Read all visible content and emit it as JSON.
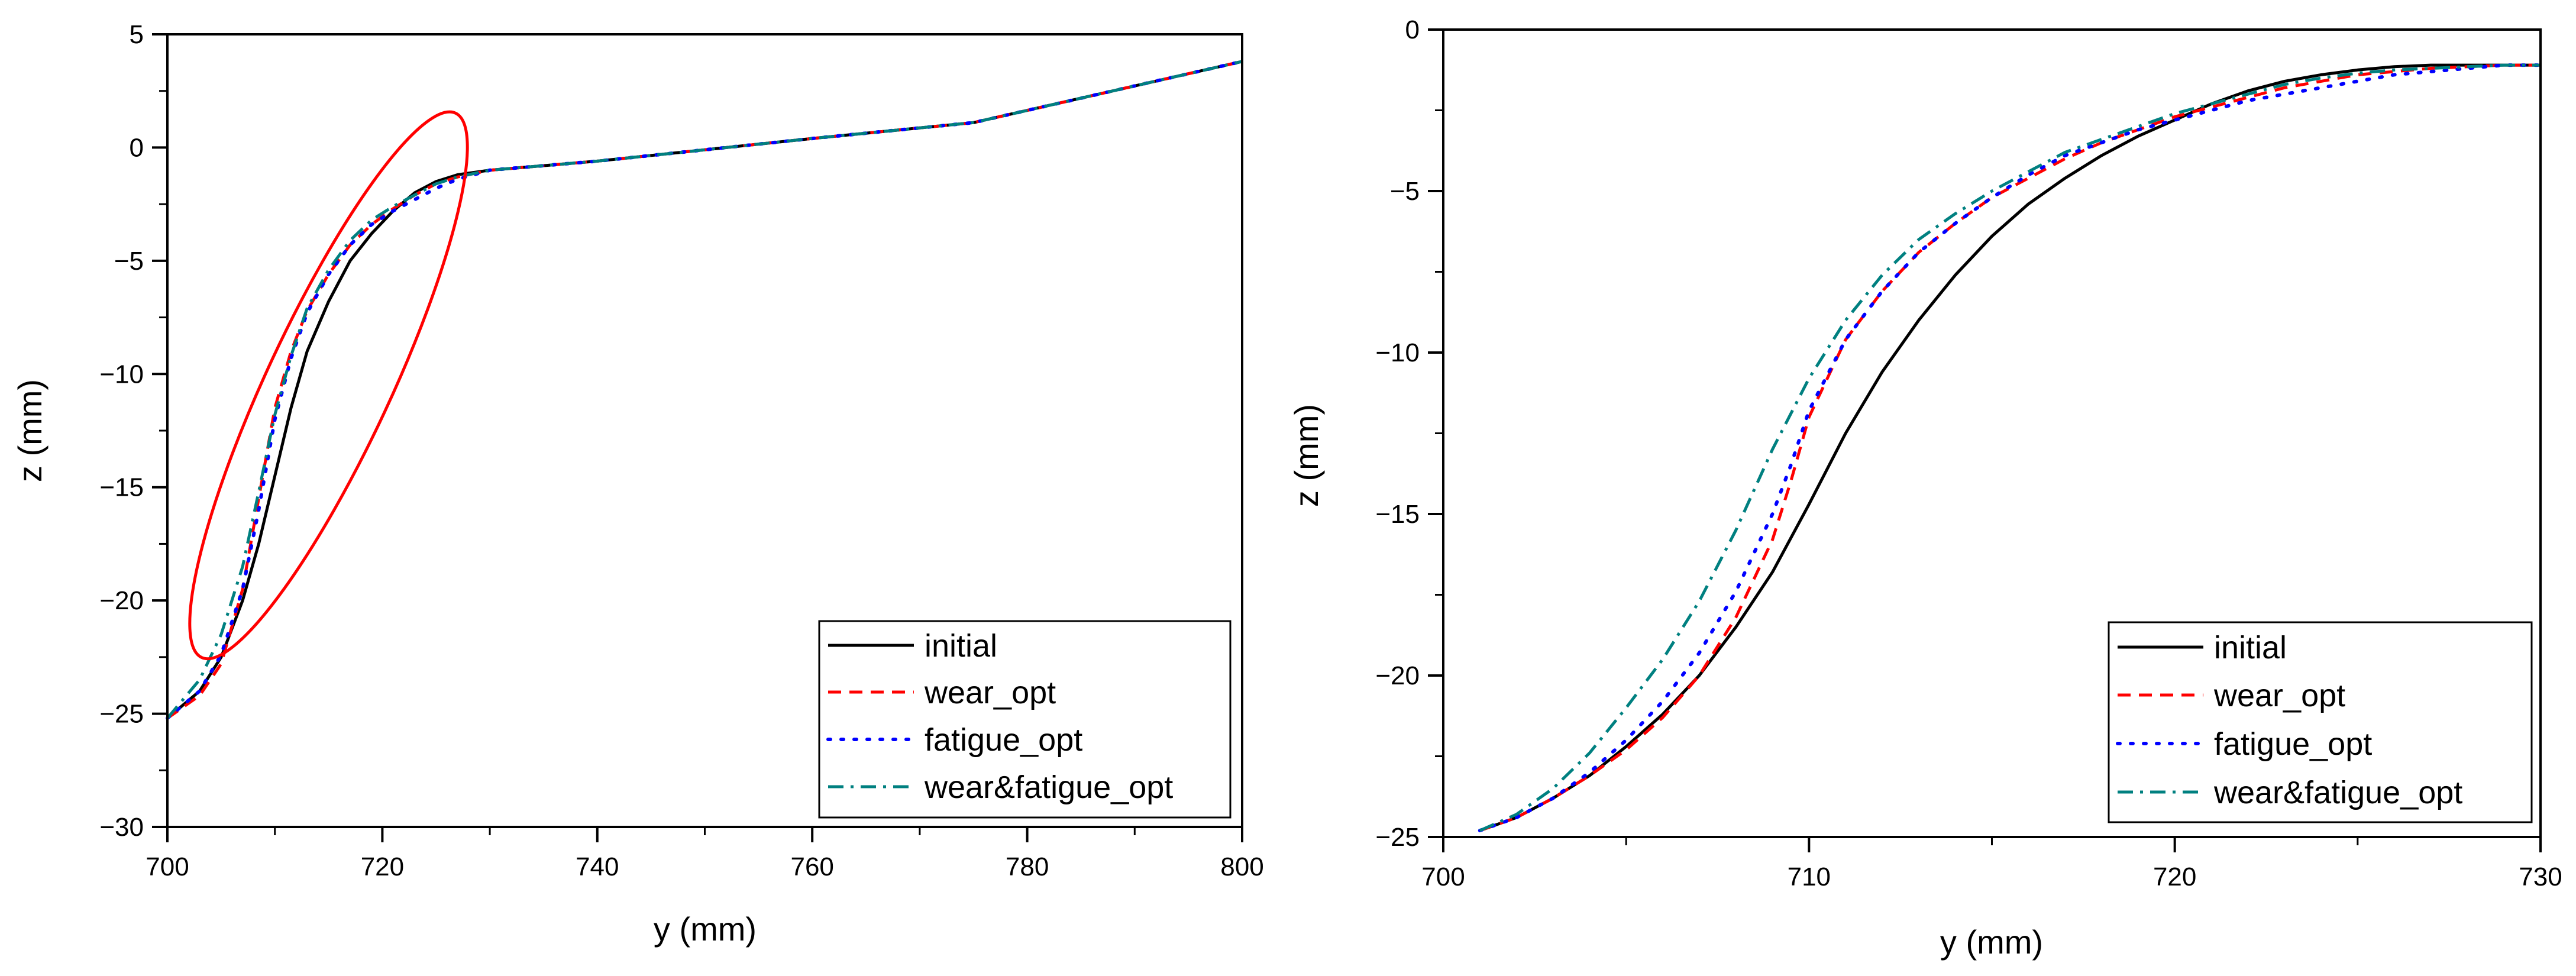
{
  "chart_data": [
    {
      "type": "line",
      "panel": "left",
      "title": "",
      "xlabel": "y (mm)",
      "ylabel": "z (mm)",
      "xlim": [
        700,
        800
      ],
      "ylim": [
        -30,
        5
      ],
      "xticks": [
        700,
        720,
        740,
        760,
        780,
        800
      ],
      "yticks": [
        -30,
        -25,
        -20,
        -15,
        -10,
        -5,
        0,
        5
      ],
      "legend_position": "bottom-right",
      "annotation": {
        "type": "ellipse",
        "color": "#ff0000",
        "center": [
          715,
          -10.5
        ],
        "semi_axes_data": [
          10.5,
          13
        ],
        "meaning": "region zoomed in right panel"
      },
      "series": [
        {
          "name": "initial",
          "color": "#000000",
          "style": "solid",
          "x": [
            700,
            703,
            705,
            707,
            708.5,
            710,
            711.5,
            713,
            715,
            717,
            719,
            721,
            723,
            725,
            727,
            730,
            740,
            760,
            775,
            800
          ],
          "y": [
            -25.2,
            -24,
            -22.5,
            -20,
            -17.5,
            -14.5,
            -11.5,
            -9,
            -6.8,
            -5.0,
            -3.8,
            -2.8,
            -2.0,
            -1.5,
            -1.2,
            -1.0,
            -0.6,
            0.4,
            1.1,
            3.8
          ]
        },
        {
          "name": "wear_opt",
          "color": "#ff0000",
          "style": "dashed",
          "x": [
            700,
            703,
            705,
            707,
            708.5,
            710,
            711.5,
            713,
            715,
            717,
            719,
            721,
            723,
            725,
            727,
            730,
            740,
            760,
            775,
            800
          ],
          "y": [
            -25.2,
            -24.2,
            -22.8,
            -19.5,
            -15.5,
            -11.5,
            -9,
            -7.2,
            -5.6,
            -4.3,
            -3.4,
            -2.7,
            -2.1,
            -1.6,
            -1.3,
            -1.0,
            -0.6,
            0.4,
            1.1,
            3.8
          ]
        },
        {
          "name": "fatigue_opt",
          "color": "#0000ff",
          "style": "dotted",
          "x": [
            700,
            703,
            705,
            707,
            708.5,
            710,
            711.5,
            713,
            715,
            717,
            719,
            721,
            723,
            725,
            727,
            730,
            740,
            760,
            775,
            800
          ],
          "y": [
            -25.2,
            -24,
            -22.4,
            -19.5,
            -16,
            -12,
            -9.3,
            -7.3,
            -5.6,
            -4.3,
            -3.4,
            -2.8,
            -2.3,
            -1.8,
            -1.4,
            -1.0,
            -0.6,
            0.4,
            1.1,
            3.8
          ]
        },
        {
          "name": "wear&fatigue_opt",
          "color": "#008080",
          "style": "dashdot",
          "x": [
            700,
            703,
            705,
            707,
            708.5,
            710,
            711.5,
            713,
            715,
            717,
            719,
            721,
            723,
            725,
            727,
            730,
            740,
            760,
            775,
            800
          ],
          "y": [
            -25.2,
            -23.5,
            -21.5,
            -18.5,
            -15.2,
            -11.8,
            -9.2,
            -7.1,
            -5.4,
            -4.1,
            -3.2,
            -2.6,
            -2.1,
            -1.6,
            -1.3,
            -1.0,
            -0.6,
            0.4,
            1.1,
            3.8
          ]
        }
      ]
    },
    {
      "type": "line",
      "panel": "right",
      "title": "",
      "xlabel": "y (mm)",
      "ylabel": "z (mm)",
      "xlim": [
        700,
        730
      ],
      "ylim": [
        -25,
        0
      ],
      "xticks": [
        700,
        710,
        720,
        730
      ],
      "yticks": [
        -25,
        -20,
        -15,
        -10,
        -5,
        0
      ],
      "legend_position": "bottom-right",
      "series": [
        {
          "name": "initial",
          "color": "#000000",
          "style": "solid",
          "x": [
            701,
            702,
            703,
            704,
            705,
            706,
            707,
            708,
            709,
            710,
            711,
            712,
            713,
            714,
            715,
            716,
            717,
            718,
            719,
            720,
            721,
            722,
            723,
            724,
            725,
            726,
            727,
            728,
            729,
            730
          ],
          "y": [
            -24.8,
            -24.4,
            -23.8,
            -23.1,
            -22.2,
            -21.2,
            -20.0,
            -18.5,
            -16.8,
            -14.7,
            -12.5,
            -10.6,
            -9.0,
            -7.6,
            -6.4,
            -5.4,
            -4.6,
            -3.9,
            -3.3,
            -2.8,
            -2.3,
            -1.9,
            -1.6,
            -1.4,
            -1.25,
            -1.15,
            -1.1,
            -1.1,
            -1.1,
            -1.1
          ]
        },
        {
          "name": "wear_opt",
          "color": "#ff0000",
          "style": "dashed",
          "x": [
            701,
            702,
            703,
            704,
            705,
            706,
            707,
            708,
            709,
            709.5,
            710,
            711,
            712,
            713,
            714,
            715,
            716,
            717,
            718,
            719,
            720,
            721,
            722,
            723,
            724,
            725,
            726,
            727,
            728,
            729,
            730
          ],
          "y": [
            -24.8,
            -24.4,
            -23.8,
            -23.1,
            -22.3,
            -21.3,
            -20.0,
            -18.2,
            -15.8,
            -14.0,
            -12.0,
            -9.6,
            -8.1,
            -6.9,
            -6.0,
            -5.2,
            -4.6,
            -4.0,
            -3.5,
            -3.1,
            -2.7,
            -2.4,
            -2.1,
            -1.8,
            -1.6,
            -1.4,
            -1.3,
            -1.2,
            -1.15,
            -1.1,
            -1.1
          ]
        },
        {
          "name": "fatigue_opt",
          "color": "#0000ff",
          "style": "dotted",
          "x": [
            701,
            702,
            703,
            704,
            705,
            706,
            707,
            708,
            709,
            709.5,
            710,
            711,
            712,
            713,
            714,
            715,
            716,
            717,
            718,
            719,
            720,
            721,
            722,
            723,
            724,
            725,
            726,
            727,
            728,
            729,
            730
          ],
          "y": [
            -24.8,
            -24.4,
            -23.8,
            -23.0,
            -22.0,
            -20.8,
            -19.3,
            -17.4,
            -15.0,
            -13.5,
            -11.8,
            -9.6,
            -8.1,
            -6.9,
            -6.0,
            -5.2,
            -4.5,
            -3.9,
            -3.5,
            -3.1,
            -2.8,
            -2.5,
            -2.2,
            -2.0,
            -1.8,
            -1.6,
            -1.4,
            -1.3,
            -1.2,
            -1.1,
            -1.1
          ]
        },
        {
          "name": "wear&fatigue_opt",
          "color": "#008080",
          "style": "dashdot",
          "x": [
            701,
            702,
            703,
            704,
            705,
            706,
            707,
            708,
            709,
            710,
            711,
            712,
            713,
            714,
            715,
            716,
            717,
            718,
            719,
            720,
            721,
            722,
            723,
            724,
            725,
            726,
            727,
            728,
            729,
            730
          ],
          "y": [
            -24.8,
            -24.3,
            -23.5,
            -22.4,
            -21.0,
            -19.5,
            -17.7,
            -15.5,
            -13.0,
            -10.8,
            -9.0,
            -7.6,
            -6.5,
            -5.7,
            -5.0,
            -4.4,
            -3.8,
            -3.4,
            -3.0,
            -2.6,
            -2.3,
            -2.0,
            -1.7,
            -1.5,
            -1.35,
            -1.25,
            -1.2,
            -1.15,
            -1.1,
            -1.1
          ]
        }
      ]
    }
  ]
}
